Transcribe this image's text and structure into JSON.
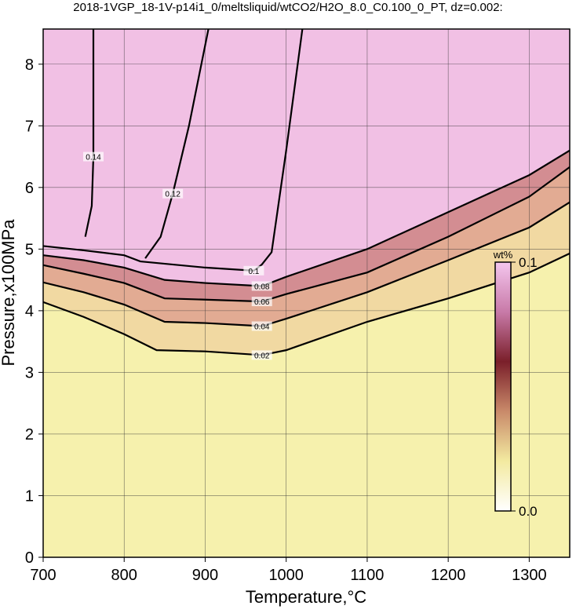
{
  "chart_data": {
    "type": "contour",
    "title": "2018-1VGP_18-1V-p14i1_0/meltsliquid/wtCO2/H2O_8.0_C0.100_0_PT, dz=0.002:",
    "x_label": "Temperature,°C",
    "y_label": "Pressure,x100MPa",
    "xlim": [
      700,
      1350
    ],
    "ylim": [
      0,
      8.57
    ],
    "xticks": [
      700,
      800,
      900,
      1000,
      1100,
      1200,
      1300
    ],
    "yticks": [
      0,
      1,
      2,
      3,
      4,
      5,
      6,
      7,
      8
    ],
    "grid": true,
    "base_color": "#f6f1ad",
    "contours": [
      {
        "level": 0.02,
        "color": "#f1d9a2",
        "x": [
          700,
          750,
          800,
          840,
          900,
          970,
          1000,
          1100,
          1200,
          1300,
          1350
        ],
        "y": [
          4.14,
          3.9,
          3.62,
          3.36,
          3.34,
          3.28,
          3.36,
          3.82,
          4.2,
          4.62,
          4.93
        ]
      },
      {
        "level": 0.04,
        "color": "#e2ab93",
        "x": [
          700,
          750,
          800,
          850,
          900,
          970,
          1000,
          1100,
          1200,
          1300,
          1350
        ],
        "y": [
          4.46,
          4.3,
          4.1,
          3.82,
          3.8,
          3.75,
          3.87,
          4.3,
          4.82,
          5.35,
          5.76
        ]
      },
      {
        "level": 0.06,
        "color": "#d38d92",
        "x": [
          700,
          750,
          800,
          850,
          900,
          970,
          1000,
          1100,
          1200,
          1300,
          1350
        ],
        "y": [
          4.74,
          4.6,
          4.45,
          4.2,
          4.18,
          4.15,
          4.27,
          4.62,
          5.2,
          5.85,
          6.33
        ]
      },
      {
        "level": 0.08,
        "color": "#f1c0e4",
        "x": [
          700,
          750,
          800,
          850,
          900,
          970,
          1000,
          1100,
          1200,
          1300,
          1350
        ],
        "y": [
          4.9,
          4.82,
          4.7,
          4.5,
          4.45,
          4.4,
          4.55,
          5.0,
          5.6,
          6.2,
          6.6
        ]
      },
      {
        "level": 0.1,
        "x": [
          700,
          750,
          800,
          820,
          900,
          960,
          970,
          982,
          1000,
          1020
        ],
        "y": [
          5.05,
          4.98,
          4.9,
          4.8,
          4.7,
          4.65,
          4.75,
          4.95,
          6.6,
          8.57
        ]
      },
      {
        "level": 0.12,
        "x": [
          826,
          845,
          860,
          880,
          904
        ],
        "y": [
          4.85,
          5.2,
          5.9,
          7.0,
          8.57
        ]
      },
      {
        "level": 0.14,
        "x": [
          752,
          760,
          762,
          762
        ],
        "y": [
          5.2,
          5.7,
          6.5,
          8.57
        ]
      }
    ],
    "colorbar": {
      "label": "wt%",
      "colors": [
        "#ffffff",
        "#f3eaa0",
        "#c98a6a",
        "#7a1f2a",
        "#c87aa8",
        "#f4c6ee"
      ],
      "ticks": [
        {
          "value": 0,
          "label": "0.0"
        },
        {
          "value": 0.1,
          "label": "0.1"
        }
      ]
    }
  }
}
